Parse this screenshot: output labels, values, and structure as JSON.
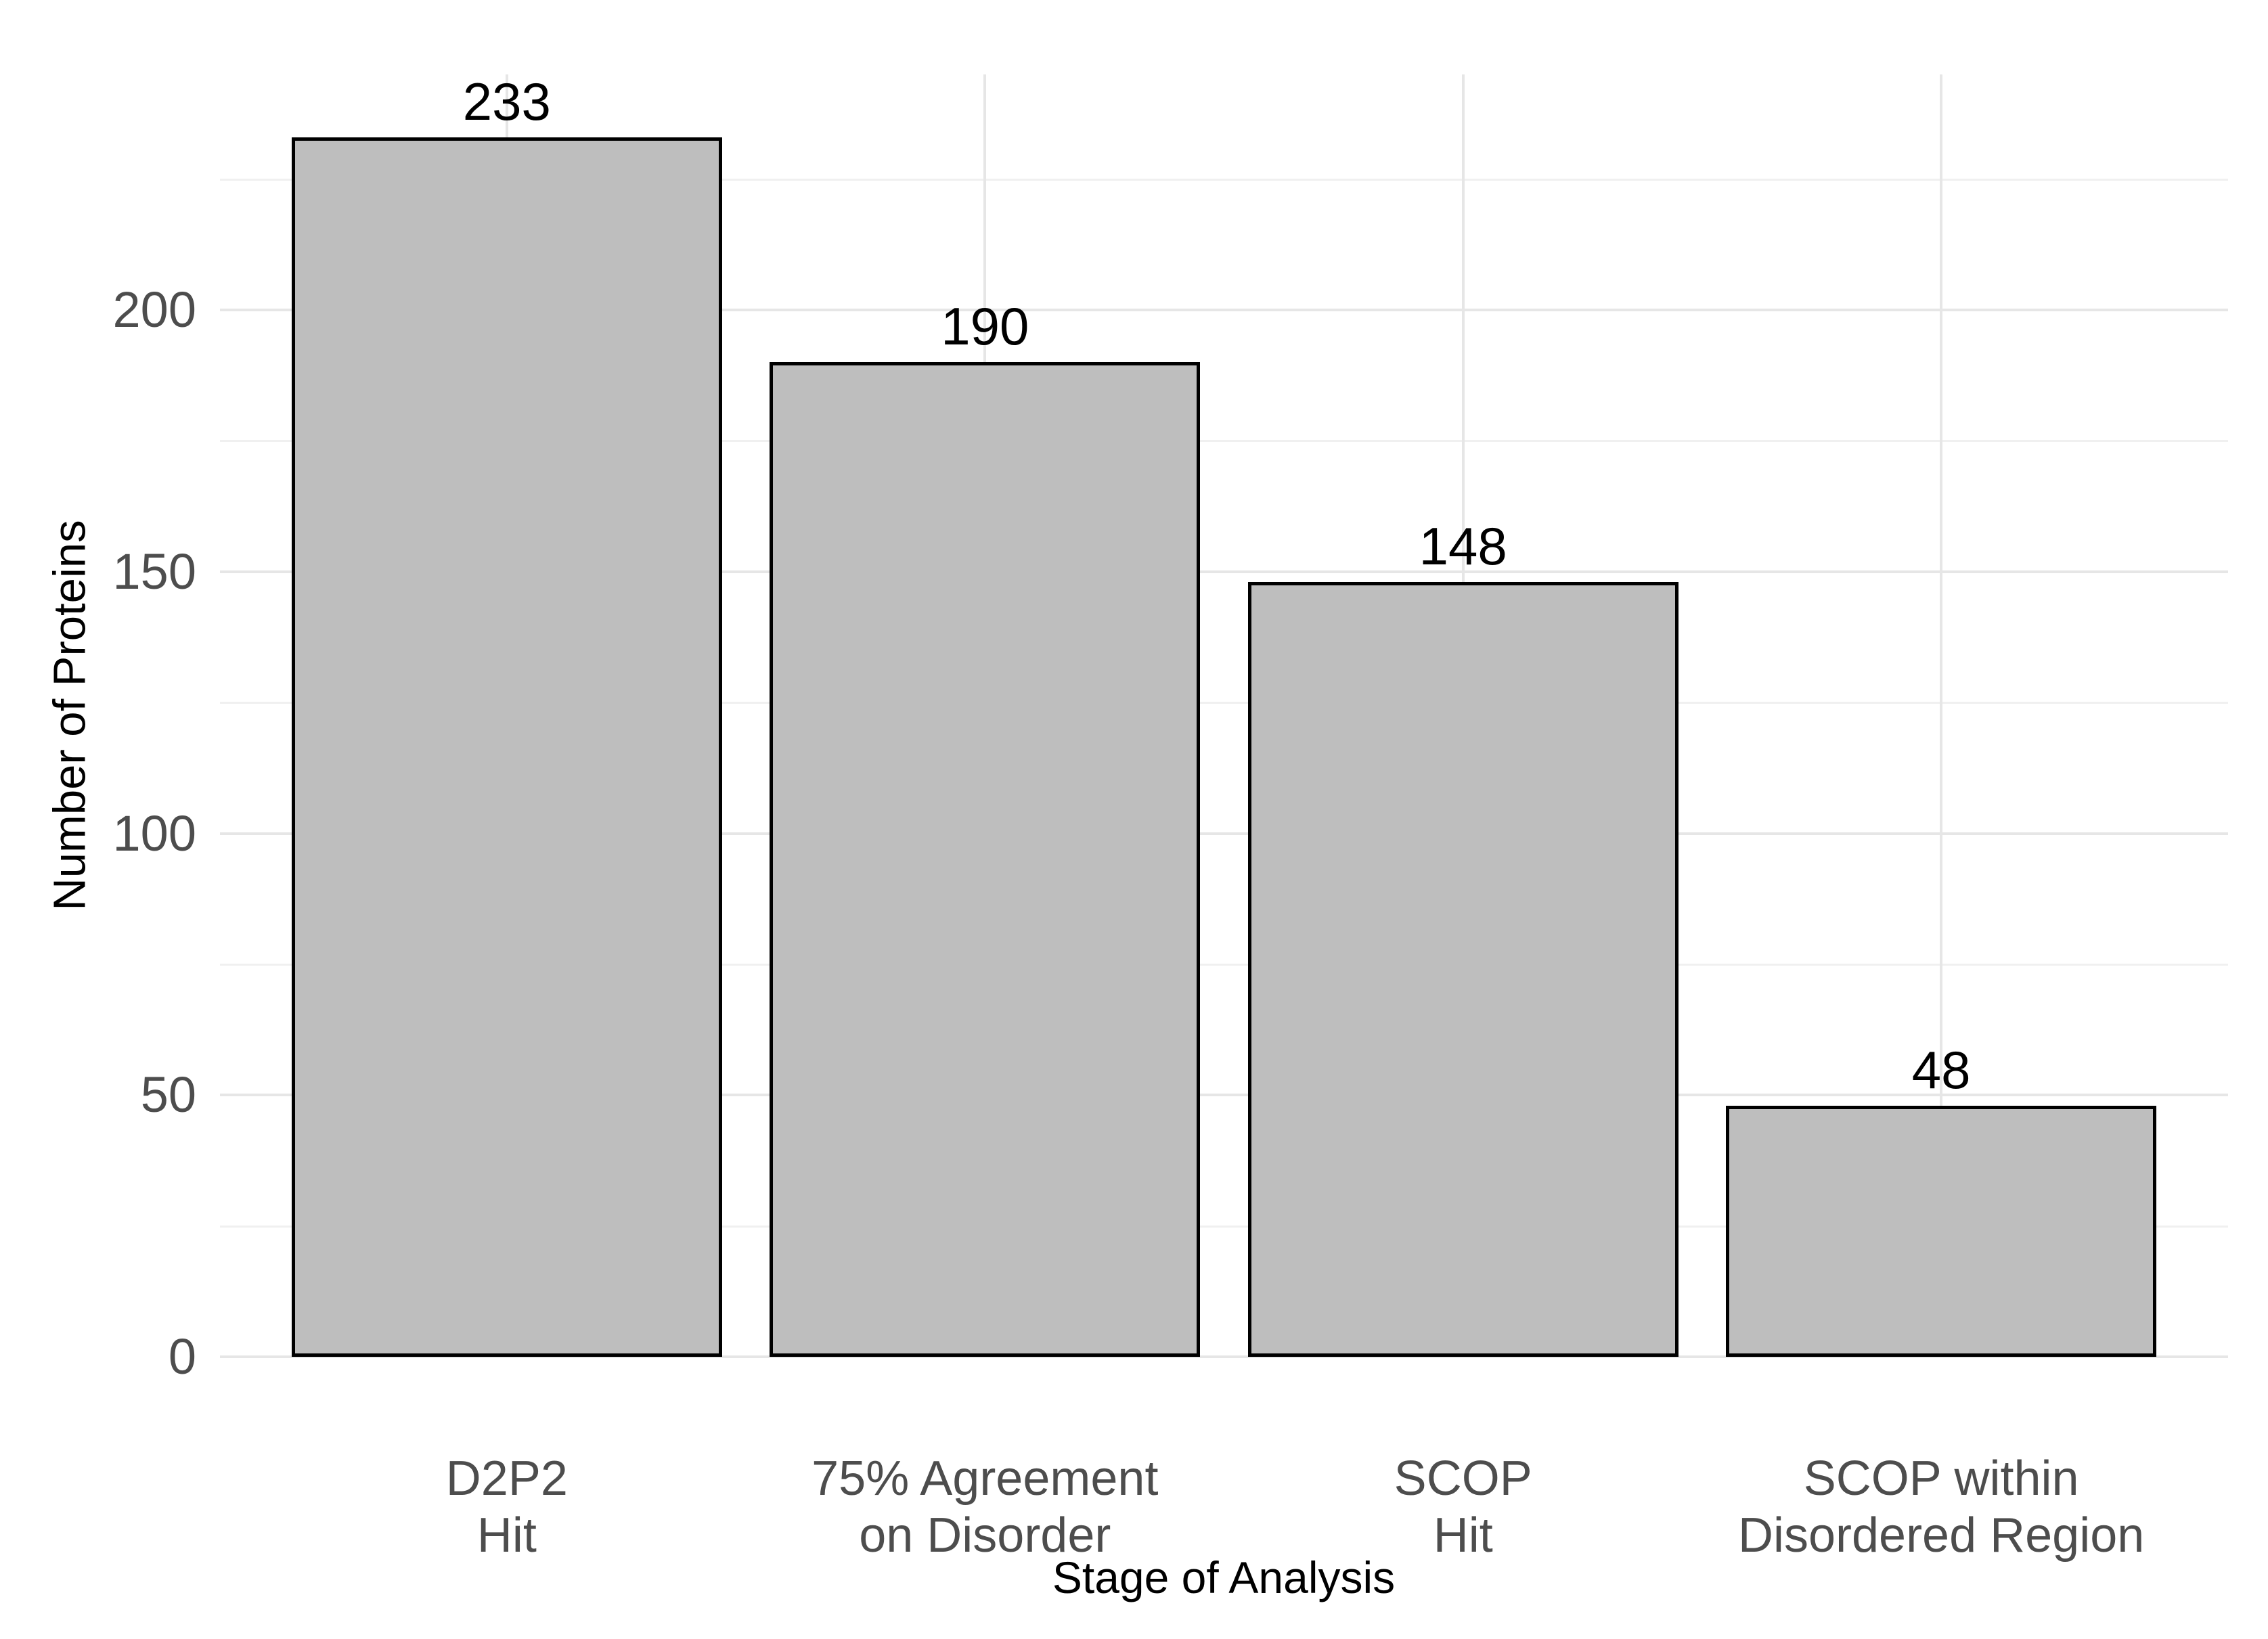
{
  "figure": {
    "background_color": "#FFFFFF"
  },
  "chart_data": {
    "type": "bar",
    "title": "",
    "categories": [
      [
        "D2P2",
        "Hit"
      ],
      [
        "75% Agreement",
        "on Disorder"
      ],
      [
        "SCOP",
        "Hit"
      ],
      [
        "SCOP within",
        "Disordered Region"
      ]
    ],
    "values": [
      233,
      190,
      148,
      48
    ],
    "bar_value_labels": [
      "233",
      "190",
      "148",
      "48"
    ],
    "xlabel": "Stage of Analysis",
    "ylabel": "Number of Proteins",
    "ylim": [
      0,
      245
    ],
    "y_major_ticks": [
      0,
      50,
      100,
      150,
      200
    ],
    "y_tick_labels": [
      "0",
      "50",
      "100",
      "150",
      "200"
    ],
    "y_minor_gridlines": [
      25,
      75,
      125,
      175,
      225
    ],
    "grid": "horizontal major+minor gridlines; vertical major gridlines at category centers",
    "legend_position": "none",
    "colors": {
      "bar_fill": "#BEBEBE",
      "bar_border": "#000000",
      "grid_major": "#E6E6E6",
      "grid_minor": "#F0F0F0",
      "tick_label": "#4D4D4D",
      "axis_title": "#000000",
      "value_label": "#000000",
      "background": "#FFFFFF"
    }
  }
}
